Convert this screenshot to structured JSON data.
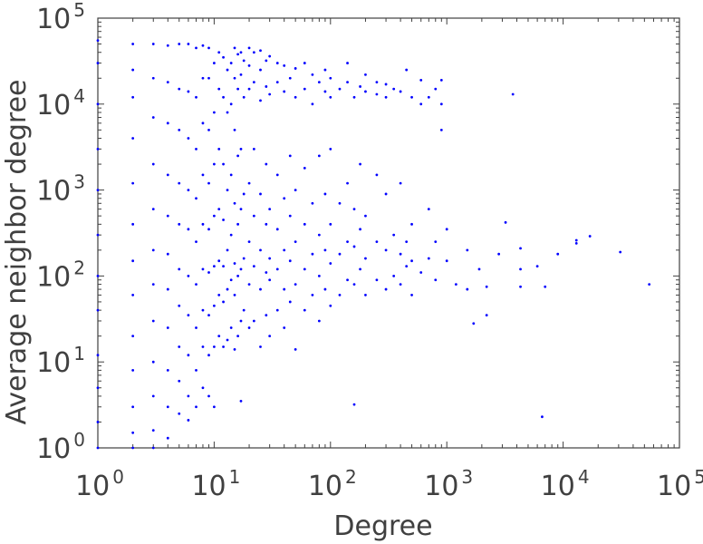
{
  "chart_data": {
    "type": "scatter",
    "xscale": "log",
    "yscale": "log",
    "xlabel": "Degree",
    "ylabel": "Average neighbor degree",
    "xlim": [
      1,
      100000
    ],
    "ylim": [
      1,
      100000
    ],
    "grid": false,
    "x_ticks": [
      {
        "base": "10",
        "exp": "0"
      },
      {
        "base": "10",
        "exp": "1"
      },
      {
        "base": "10",
        "exp": "2"
      },
      {
        "base": "10",
        "exp": "3"
      },
      {
        "base": "10",
        "exp": "4"
      },
      {
        "base": "10",
        "exp": "5"
      }
    ],
    "y_ticks": [
      {
        "base": "10",
        "exp": "0"
      },
      {
        "base": "10",
        "exp": "1"
      },
      {
        "base": "10",
        "exp": "2"
      },
      {
        "base": "10",
        "exp": "3"
      },
      {
        "base": "10",
        "exp": "4"
      },
      {
        "base": "10",
        "exp": "5"
      }
    ],
    "series": [
      {
        "color": "#0000ff",
        "marker": "dot",
        "points": [
          [
            1,
            1.0
          ],
          [
            1,
            2.0
          ],
          [
            1,
            5.0
          ],
          [
            1,
            12
          ],
          [
            1,
            40
          ],
          [
            1,
            100
          ],
          [
            1,
            300
          ],
          [
            1,
            1000
          ],
          [
            1,
            3000
          ],
          [
            1,
            10000
          ],
          [
            1,
            30000
          ],
          [
            1,
            55000
          ],
          [
            2,
            1.0
          ],
          [
            2,
            1.5
          ],
          [
            2,
            3
          ],
          [
            2,
            8
          ],
          [
            2,
            20
          ],
          [
            2,
            60
          ],
          [
            2,
            150
          ],
          [
            2,
            400
          ],
          [
            2,
            1200
          ],
          [
            2,
            4000
          ],
          [
            2,
            12000
          ],
          [
            2,
            25000
          ],
          [
            2,
            50000
          ],
          [
            3,
            1.0
          ],
          [
            3,
            1.6
          ],
          [
            3,
            4
          ],
          [
            3,
            10
          ],
          [
            3,
            30
          ],
          [
            3,
            80
          ],
          [
            3,
            200
          ],
          [
            3,
            600
          ],
          [
            3,
            2000
          ],
          [
            3,
            7000
          ],
          [
            3,
            20000
          ],
          [
            3,
            50000
          ],
          [
            4,
            1.3
          ],
          [
            4,
            3
          ],
          [
            4,
            8
          ],
          [
            4,
            25
          ],
          [
            4,
            70
          ],
          [
            4,
            180
          ],
          [
            4,
            500
          ],
          [
            4,
            1500
          ],
          [
            4,
            6000
          ],
          [
            4,
            18000
          ],
          [
            4,
            48000
          ],
          [
            5,
            2.5
          ],
          [
            5,
            6
          ],
          [
            5,
            15
          ],
          [
            5,
            45
          ],
          [
            5,
            120
          ],
          [
            5,
            400
          ],
          [
            5,
            1200
          ],
          [
            5,
            5000
          ],
          [
            5,
            15000
          ],
          [
            5,
            50000
          ],
          [
            6,
            2.1
          ],
          [
            6,
            4
          ],
          [
            6,
            12
          ],
          [
            6,
            35
          ],
          [
            6,
            100
          ],
          [
            6,
            350
          ],
          [
            6,
            1000
          ],
          [
            6,
            4000
          ],
          [
            6,
            14000
          ],
          [
            6,
            50000
          ],
          [
            7,
            3
          ],
          [
            7,
            8
          ],
          [
            7,
            25
          ],
          [
            7,
            80
          ],
          [
            7,
            250
          ],
          [
            7,
            800
          ],
          [
            7,
            3000
          ],
          [
            7,
            12000
          ],
          [
            7,
            45000
          ],
          [
            8,
            5
          ],
          [
            8,
            15
          ],
          [
            8,
            40
          ],
          [
            8,
            120
          ],
          [
            8,
            400
          ],
          [
            8,
            1500
          ],
          [
            8,
            6000
          ],
          [
            8,
            20000
          ],
          [
            8,
            48000
          ],
          [
            9,
            4
          ],
          [
            9,
            12
          ],
          [
            9,
            35
          ],
          [
            9,
            110
          ],
          [
            9,
            350
          ],
          [
            9,
            1200
          ],
          [
            9,
            5000
          ],
          [
            9,
            20000
          ],
          [
            9,
            45000
          ],
          [
            10,
            3
          ],
          [
            10,
            15
          ],
          [
            10,
            45
          ],
          [
            10,
            130
          ],
          [
            10,
            500
          ],
          [
            10,
            2000
          ],
          [
            10,
            8000
          ],
          [
            10,
            30000
          ],
          [
            11,
            20
          ],
          [
            11,
            60
          ],
          [
            11,
            150
          ],
          [
            11,
            600
          ],
          [
            11,
            3000
          ],
          [
            11,
            15000
          ],
          [
            11,
            40000
          ],
          [
            12,
            15
          ],
          [
            12,
            50
          ],
          [
            12,
            130
          ],
          [
            12,
            450
          ],
          [
            12,
            2000
          ],
          [
            12,
            12000
          ],
          [
            12,
            35000
          ],
          [
            13,
            18
          ],
          [
            13,
            70
          ],
          [
            13,
            200
          ],
          [
            13,
            1000
          ],
          [
            13,
            8000
          ],
          [
            13,
            25000
          ],
          [
            14,
            25
          ],
          [
            14,
            90
          ],
          [
            14,
            300
          ],
          [
            14,
            1500
          ],
          [
            14,
            10000
          ],
          [
            14,
            30000
          ],
          [
            15,
            14
          ],
          [
            15,
            60
          ],
          [
            15,
            140
          ],
          [
            15,
            700
          ],
          [
            15,
            5000
          ],
          [
            15,
            20000
          ],
          [
            15,
            45000
          ],
          [
            16,
            20
          ],
          [
            16,
            100
          ],
          [
            16,
            400
          ],
          [
            16,
            2500
          ],
          [
            16,
            15000
          ],
          [
            16,
            38000
          ],
          [
            17,
            3.5
          ],
          [
            17,
            30
          ],
          [
            17,
            120
          ],
          [
            17,
            600
          ],
          [
            17,
            3000
          ],
          [
            17,
            22000
          ],
          [
            17,
            40000
          ],
          [
            18,
            40
          ],
          [
            18,
            160
          ],
          [
            18,
            900
          ],
          [
            18,
            12000
          ],
          [
            18,
            32000
          ],
          [
            20,
            25
          ],
          [
            20,
            80
          ],
          [
            20,
            250
          ],
          [
            20,
            1200
          ],
          [
            20,
            15000
          ],
          [
            20,
            28000
          ],
          [
            20,
            45000
          ],
          [
            22,
            30
          ],
          [
            22,
            130
          ],
          [
            22,
            500
          ],
          [
            22,
            3000
          ],
          [
            22,
            18000
          ],
          [
            22,
            40000
          ],
          [
            25,
            15
          ],
          [
            25,
            70
          ],
          [
            25,
            200
          ],
          [
            25,
            900
          ],
          [
            25,
            11000
          ],
          [
            25,
            25000
          ],
          [
            25,
            42000
          ],
          [
            28,
            35
          ],
          [
            28,
            110
          ],
          [
            28,
            400
          ],
          [
            28,
            2000
          ],
          [
            28,
            16000
          ],
          [
            28,
            32000
          ],
          [
            30,
            20
          ],
          [
            30,
            90
          ],
          [
            30,
            160
          ],
          [
            30,
            600
          ],
          [
            30,
            13000
          ],
          [
            30,
            36000
          ],
          [
            35,
            40
          ],
          [
            35,
            120
          ],
          [
            35,
            350
          ],
          [
            35,
            1500
          ],
          [
            35,
            18000
          ],
          [
            35,
            30000
          ],
          [
            40,
            25
          ],
          [
            40,
            70
          ],
          [
            40,
            200
          ],
          [
            40,
            800
          ],
          [
            40,
            14000
          ],
          [
            40,
            28000
          ],
          [
            45,
            50
          ],
          [
            45,
            150
          ],
          [
            45,
            500
          ],
          [
            45,
            2500
          ],
          [
            45,
            20000
          ],
          [
            50,
            14
          ],
          [
            50,
            80
          ],
          [
            50,
            250
          ],
          [
            50,
            1000
          ],
          [
            50,
            12000
          ],
          [
            50,
            26000
          ],
          [
            60,
            40
          ],
          [
            60,
            120
          ],
          [
            60,
            400
          ],
          [
            60,
            1800
          ],
          [
            60,
            15000
          ],
          [
            60,
            30000
          ],
          [
            70,
            60
          ],
          [
            70,
            180
          ],
          [
            70,
            700
          ],
          [
            70,
            10000
          ],
          [
            70,
            22000
          ],
          [
            80,
            30
          ],
          [
            80,
            100
          ],
          [
            80,
            300
          ],
          [
            80,
            2500
          ],
          [
            80,
            18000
          ],
          [
            90,
            70
          ],
          [
            90,
            200
          ],
          [
            90,
            900
          ],
          [
            90,
            14000
          ],
          [
            90,
            25000
          ],
          [
            100,
            45
          ],
          [
            100,
            140
          ],
          [
            100,
            400
          ],
          [
            100,
            3000
          ],
          [
            100,
            12000
          ],
          [
            100,
            20000
          ],
          [
            120,
            60
          ],
          [
            120,
            180
          ],
          [
            120,
            700
          ],
          [
            120,
            15000
          ],
          [
            140,
            90
          ],
          [
            140,
            250
          ],
          [
            140,
            1200
          ],
          [
            140,
            18000
          ],
          [
            140,
            30000
          ],
          [
            160,
            3.2
          ],
          [
            160,
            80
          ],
          [
            160,
            220
          ],
          [
            160,
            600
          ],
          [
            160,
            12000
          ],
          [
            180,
            120
          ],
          [
            180,
            350
          ],
          [
            180,
            2000
          ],
          [
            180,
            16000
          ],
          [
            200,
            60
          ],
          [
            200,
            160
          ],
          [
            200,
            500
          ],
          [
            200,
            14000
          ],
          [
            200,
            22000
          ],
          [
            250,
            90
          ],
          [
            250,
            250
          ],
          [
            250,
            1500
          ],
          [
            250,
            13000
          ],
          [
            250,
            18000
          ],
          [
            300,
            70
          ],
          [
            300,
            200
          ],
          [
            300,
            900
          ],
          [
            300,
            12000
          ],
          [
            300,
            17000
          ],
          [
            350,
            100
          ],
          [
            350,
            300
          ],
          [
            350,
            15000
          ],
          [
            400,
            80
          ],
          [
            400,
            180
          ],
          [
            400,
            1200
          ],
          [
            400,
            14000
          ],
          [
            450,
            130
          ],
          [
            450,
            250
          ],
          [
            450,
            25000
          ],
          [
            500,
            60
          ],
          [
            500,
            150
          ],
          [
            500,
            400
          ],
          [
            500,
            12000
          ],
          [
            600,
            110
          ],
          [
            600,
            10000
          ],
          [
            600,
            19000
          ],
          [
            700,
            160
          ],
          [
            700,
            600
          ],
          [
            700,
            12000
          ],
          [
            800,
            90
          ],
          [
            800,
            250
          ],
          [
            800,
            15000
          ],
          [
            900,
            5000
          ],
          [
            900,
            10000
          ],
          [
            900,
            19000
          ],
          [
            1000,
            150
          ],
          [
            1000,
            350
          ],
          [
            1200,
            80
          ],
          [
            1500,
            70
          ],
          [
            1500,
            200
          ],
          [
            1700,
            28
          ],
          [
            1900,
            120
          ],
          [
            2200,
            35
          ],
          [
            2200,
            75
          ],
          [
            2800,
            180
          ],
          [
            3200,
            420
          ],
          [
            3700,
            13000
          ],
          [
            4300,
            210
          ],
          [
            4300,
            75
          ],
          [
            4300,
            120
          ],
          [
            6000,
            130
          ],
          [
            6600,
            2.3
          ],
          [
            7000,
            75
          ],
          [
            9000,
            180
          ],
          [
            13000,
            240
          ],
          [
            13000,
            260
          ],
          [
            17000,
            290
          ],
          [
            31000,
            190
          ],
          [
            55000,
            80
          ]
        ]
      }
    ]
  }
}
